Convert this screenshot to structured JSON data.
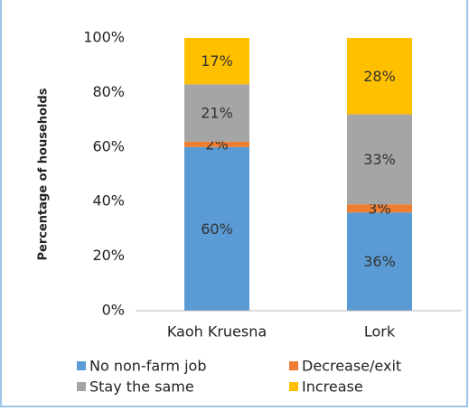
{
  "chart_data": {
    "type": "stacked_bar",
    "y_axis_label": "Percentage of households",
    "categories": [
      "Kaoh Kruesna",
      "Lork"
    ],
    "series": [
      {
        "name": "No non-farm job",
        "color": "#5b9bd5",
        "values": [
          60,
          36
        ],
        "value_labels": [
          "60%",
          "36%"
        ]
      },
      {
        "name": "Decrease/exit",
        "color": "#ed7d31",
        "values": [
          2,
          3
        ],
        "value_labels": [
          "2%",
          "3%"
        ]
      },
      {
        "name": "Stay the same",
        "color": "#a5a5a5",
        "values": [
          21,
          33
        ],
        "value_labels": [
          "21%",
          "33%"
        ]
      },
      {
        "name": "Increase",
        "color": "#ffc000",
        "values": [
          17,
          28
        ],
        "value_labels": [
          "17%",
          "28%"
        ]
      }
    ],
    "ylim": [
      0,
      100
    ],
    "yticks": [
      {
        "value": 0,
        "label": "0%"
      },
      {
        "value": 20,
        "label": "20%"
      },
      {
        "value": 40,
        "label": "40%"
      },
      {
        "value": 60,
        "label": "60%"
      },
      {
        "value": 80,
        "label": "80%"
      },
      {
        "value": 100,
        "label": "100%"
      }
    ],
    "grid": false
  }
}
